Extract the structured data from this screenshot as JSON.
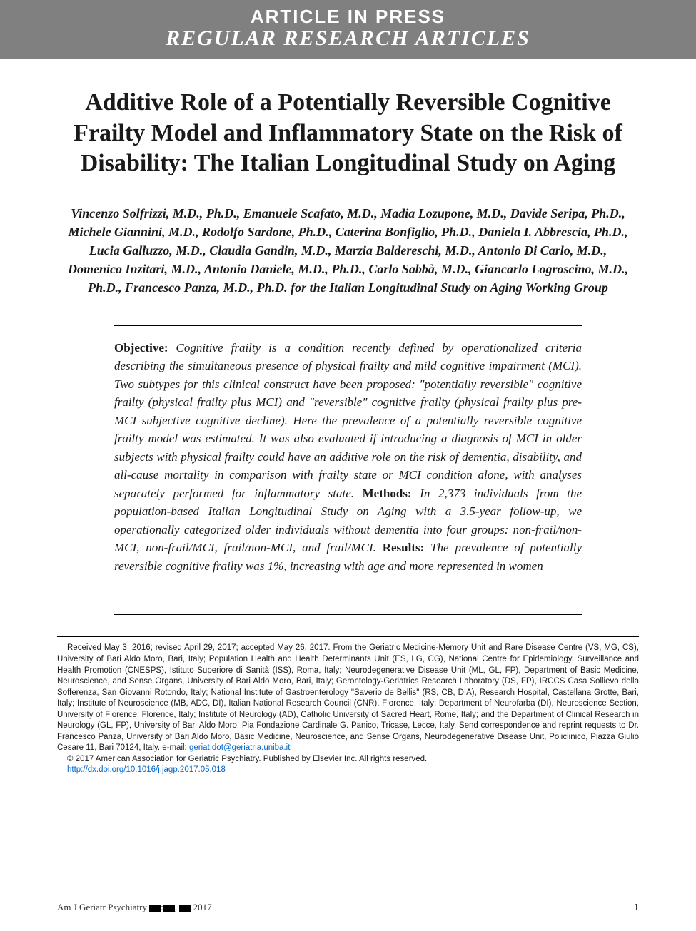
{
  "header": {
    "line1": "ARTICLE IN PRESS",
    "line2": "REGULAR RESEARCH ARTICLES"
  },
  "title": "Additive Role of a Potentially Reversible Cognitive Frailty Model and Inflammatory State on the Risk of Disability: The Italian Longitudinal Study on Aging",
  "authors": "Vincenzo Solfrizzi, M.D., Ph.D., Emanuele Scafato, M.D., Madia Lozupone, M.D., Davide Seripa, Ph.D., Michele Giannini, M.D., Rodolfo Sardone, Ph.D., Caterina Bonfiglio, Ph.D., Daniela I. Abbrescia, Ph.D., Lucia Galluzzo, M.D., Claudia Gandin, M.D., Marzia Baldereschi, M.D., Antonio Di Carlo, M.D., Domenico Inzitari, M.D., Antonio Daniele, M.D., Ph.D., Carlo Sabbà, M.D., Giancarlo Logroscino, M.D., Ph.D., Francesco Panza, M.D., Ph.D. for the Italian Longitudinal Study on Aging Working Group",
  "abstract": {
    "sections": [
      {
        "label": "Objective:",
        "text": " Cognitive frailty is a condition recently defined by operationalized criteria describing the simultaneous presence of physical frailty and mild cognitive impairment (MCI). Two subtypes for this clinical construct have been proposed: \"potentially reversible\" cognitive frailty (physical frailty plus MCI) and \"reversible\" cognitive frailty (physical frailty plus pre-MCI subjective cognitive decline). Here the prevalence of a potentially reversible cognitive frailty model was estimated. It was also evaluated if introducing a diagnosis of MCI in older subjects with physical frailty could have an additive role on the risk of dementia, disability, and all-cause mortality in comparison with frailty state or MCI condition alone, with analyses separately performed for inflammatory state. "
      },
      {
        "label": "Methods:",
        "text": " In 2,373 individuals from the population-based Italian Longitudinal Study on Aging with a 3.5-year follow-up, we operationally categorized older individuals without dementia into four groups: non-frail/non-MCI, non-frail/MCI, frail/non-MCI, and frail/MCI. "
      },
      {
        "label": "Results:",
        "text": " The prevalence of potentially reversible cognitive frailty was 1%, increasing with age and more represented in women"
      }
    ]
  },
  "footer": {
    "received": "Received May 3, 2016; revised April 29, 2017; accepted May 26, 2017. From the Geriatric Medicine-Memory Unit and Rare Disease Centre (VS, MG, CS), University of Bari Aldo Moro, Bari, Italy; Population Health and Health Determinants Unit (ES, LG, CG), National Centre for Epidemiology, Surveillance and Health Promotion (CNESPS), Istituto Superiore di Sanità (ISS), Roma, Italy; Neurodegenerative Disease Unit (ML, GL, FP), Department of Basic Medicine, Neuroscience, and Sense Organs, University of Bari Aldo Moro, Bari, Italy; Gerontology-Geriatrics Research Laboratory (DS, FP), IRCCS Casa Sollievo della Sofferenza, San Giovanni Rotondo, Italy; National Institute of Gastroenterology \"Saverio de Bellis\" (RS, CB, DIA), Research Hospital, Castellana Grotte, Bari, Italy; Institute of Neuroscience (MB, ADC, DI), Italian National Research Council (CNR), Florence, Italy; Department of Neurofarba (DI), Neuroscience Section, University of Florence, Florence, Italy; Institute of Neurology (AD), Catholic University of Sacred Heart, Rome, Italy; and the Department of Clinical Research in Neurology (GL, FP), University of Bari Aldo Moro, Pia Fondazione Cardinale G. Panico, Tricase, Lecce, Italy. Send correspondence and reprint requests to Dr. Francesco Panza, University of Bari Aldo Moro, Basic Medicine, Neuroscience, and Sense Organs, Neurodegenerative Disease Unit, Policlinico, Piazza Giulio Cesare 11, Bari 70124, Italy. e-mail: ",
    "email": "geriat.dot@geriatria.uniba.it",
    "copyright": "© 2017 American Association for Geriatric Psychiatry. Published by Elsevier Inc. All rights reserved.",
    "doi": "http://dx.doi.org/10.1016/j.jagp.2017.05.018"
  },
  "pagefooter": {
    "journal_prefix": "Am J Geriatr Psychiatry ",
    "journal_suffix": " 2017",
    "pagenum": "1"
  },
  "colors": {
    "header_bg": "#808080",
    "header_text": "#ffffff",
    "body_text": "#1a1a1a",
    "link": "#0066cc",
    "page_bg": "#ffffff"
  },
  "typography": {
    "title_fontsize": 34,
    "authors_fontsize": 18,
    "abstract_fontsize": 17,
    "footer_fontsize": 11.5,
    "header_line1_fontsize": 26,
    "header_line2_fontsize": 30
  }
}
